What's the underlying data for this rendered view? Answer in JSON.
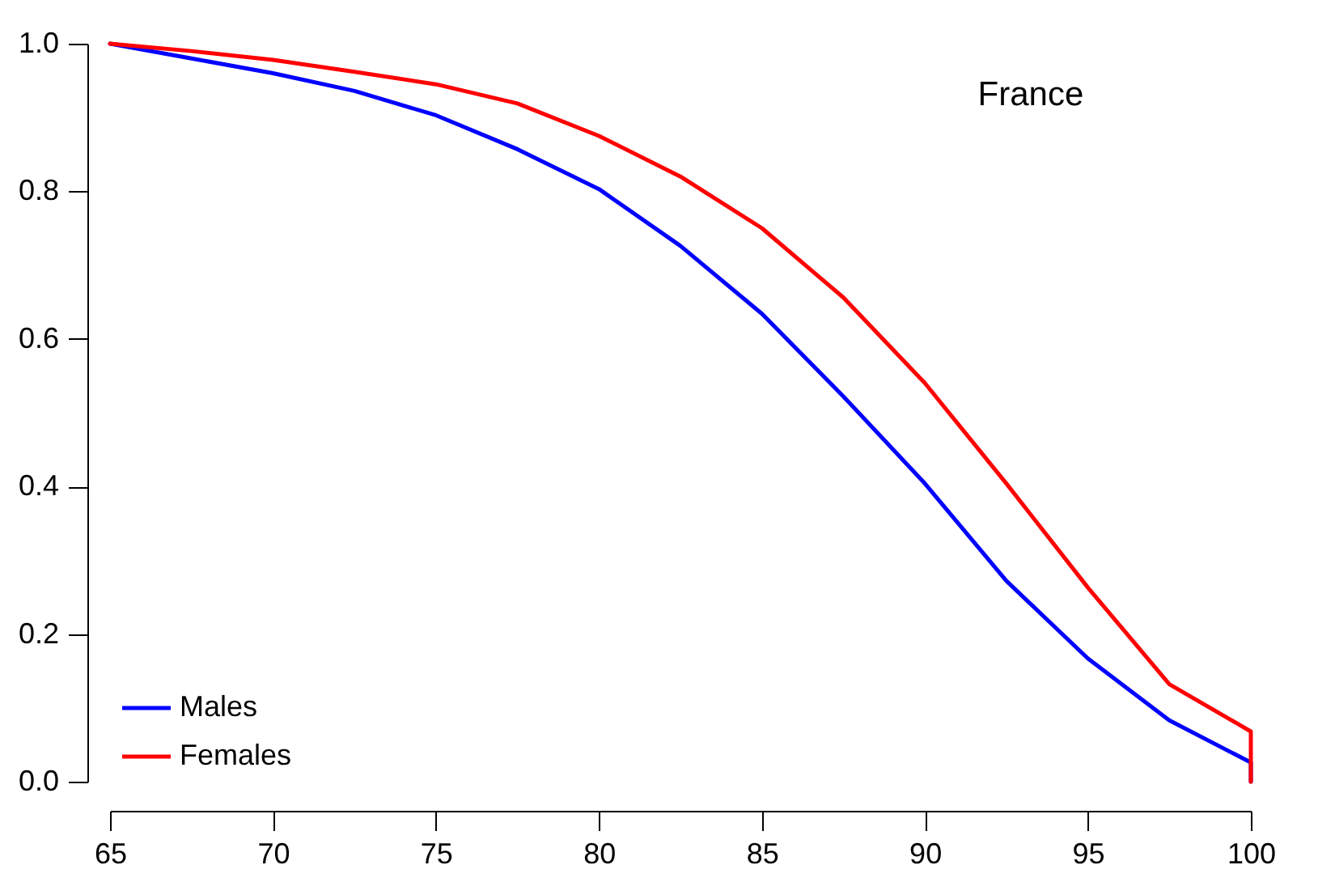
{
  "chart_data": {
    "type": "line",
    "annotations": [
      "France"
    ],
    "x": [
      65,
      67.5,
      70,
      72.5,
      75,
      77.5,
      80,
      82.5,
      85,
      87.5,
      90,
      92.5,
      95,
      97.5,
      100,
      100
    ],
    "series": [
      {
        "name": "Males",
        "color": "#0000ff",
        "values": [
          1.0,
          0.98,
          0.96,
          0.936,
          0.903,
          0.857,
          0.803,
          0.726,
          0.634,
          0.522,
          0.404,
          0.272,
          0.167,
          0.083,
          0.026,
          0
        ]
      },
      {
        "name": "Females",
        "color": "#ff0000",
        "values": [
          1.0,
          0.99,
          0.978,
          0.962,
          0.945,
          0.919,
          0.875,
          0.82,
          0.75,
          0.656,
          0.54,
          0.404,
          0.263,
          0.132,
          0.068,
          0
        ]
      }
    ],
    "xlim": [
      65,
      100
    ],
    "xticks": [
      65,
      70,
      75,
      80,
      85,
      90,
      95,
      100
    ],
    "ylim": [
      0,
      1
    ],
    "yticks": [
      {
        "value": 0,
        "label": "0.0"
      },
      0.2,
      0.4,
      0.6,
      0.8,
      {
        "value": 1,
        "label": "1.0"
      }
    ],
    "legend": "bottom left",
    "marker": "none",
    "line_style": "solid",
    "grid": false
  }
}
